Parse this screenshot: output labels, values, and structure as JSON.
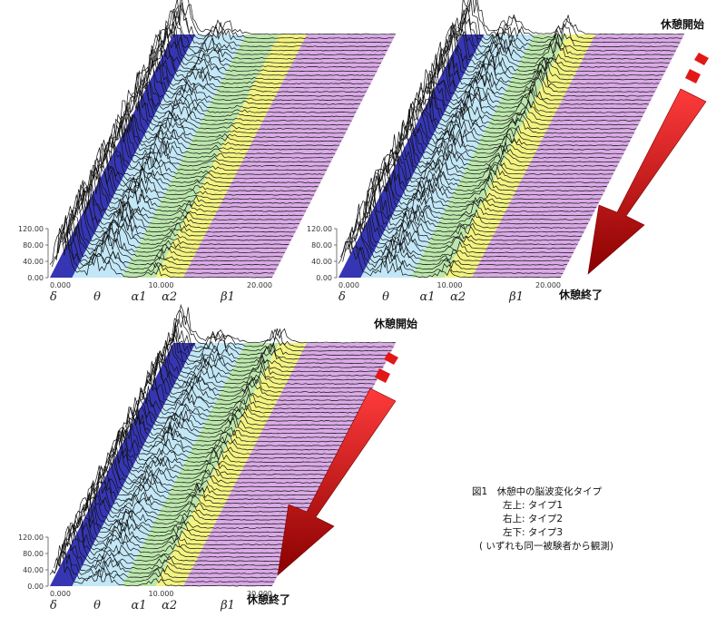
{
  "caption": {
    "title": "図1　休憩中の脳波変化タイプ",
    "items": [
      "左上: タイプ1",
      "右上: タイプ2",
      "左下: タイプ3"
    ],
    "note": "( いずれも同一被験者から観測)"
  },
  "rest_start": "休憩開始",
  "rest_end": "休憩終了",
  "colors": {
    "arrow": "#cc1111",
    "delta": "#2b2bb0",
    "theta": "#bfe6f7",
    "alpha1": "#b8e6a8",
    "alpha2": "#f2f27a",
    "beta1": "#d8a6e6"
  },
  "chart_data": [
    {
      "panel": "top-left",
      "type": "area",
      "title": "タイプ1",
      "x_ticks": [
        "0.000",
        "10.000",
        "20.000"
      ],
      "y_ticks": [
        "120.00",
        "80.00",
        "40.00",
        "0.00"
      ],
      "xlim": [
        0,
        20
      ],
      "ylim": [
        0,
        120
      ],
      "bands": [
        {
          "label": "δ",
          "range": [
            0,
            2
          ]
        },
        {
          "label": "θ",
          "range": [
            2,
            6.5
          ]
        },
        {
          "label": "α1",
          "range": [
            6.5,
            9.5
          ]
        },
        {
          "label": "α2",
          "range": [
            9.5,
            12
          ]
        },
        {
          "label": "β1",
          "range": [
            12,
            20
          ]
        }
      ],
      "traces": 60,
      "peak_delta": 110,
      "peak_theta": 60,
      "peak_alpha": 30
    },
    {
      "panel": "top-right",
      "type": "area",
      "title": "タイプ2",
      "x_ticks": [
        "0.000",
        "10.000",
        "20.000"
      ],
      "y_ticks": [
        "120.00",
        "80.00",
        "40.00",
        "0.00"
      ],
      "xlim": [
        0,
        20
      ],
      "ylim": [
        0,
        120
      ],
      "bands": [
        {
          "label": "δ",
          "range": [
            0,
            2
          ]
        },
        {
          "label": "θ",
          "range": [
            2,
            6.5
          ]
        },
        {
          "label": "α1",
          "range": [
            6.5,
            9.5
          ]
        },
        {
          "label": "α2",
          "range": [
            9.5,
            12
          ]
        },
        {
          "label": "β1",
          "range": [
            12,
            20
          ]
        }
      ],
      "traces": 60,
      "peak_delta": 115,
      "peak_theta": 50,
      "peak_alpha": 50
    },
    {
      "panel": "bottom-left",
      "type": "area",
      "title": "タイプ3",
      "x_ticks": [
        "0.000",
        "10.000",
        "20.000"
      ],
      "y_ticks": [
        "120.00",
        "80.00",
        "40.00",
        "0.00"
      ],
      "xlim": [
        0,
        20
      ],
      "ylim": [
        0,
        120
      ],
      "bands": [
        {
          "label": "δ",
          "range": [
            0,
            2
          ]
        },
        {
          "label": "θ",
          "range": [
            2,
            6.5
          ]
        },
        {
          "label": "α1",
          "range": [
            6.5,
            9.5
          ]
        },
        {
          "label": "α2",
          "range": [
            9.5,
            12
          ]
        },
        {
          "label": "β1",
          "range": [
            12,
            20
          ]
        }
      ],
      "traces": 60,
      "peak_delta": 90,
      "peak_theta": 40,
      "peak_alpha": 45
    }
  ]
}
